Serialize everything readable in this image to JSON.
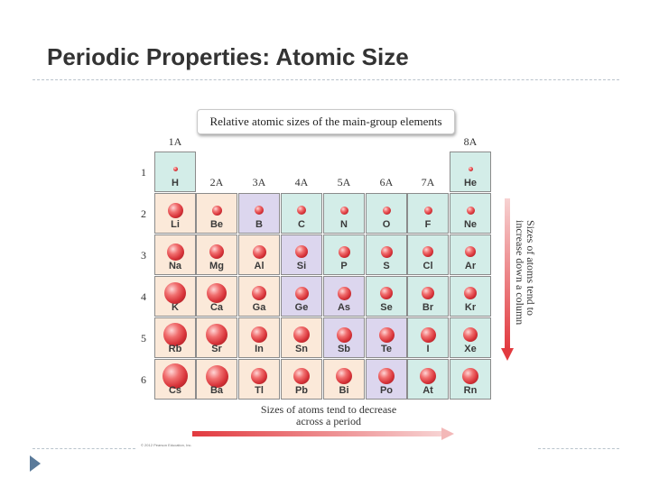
{
  "slide": {
    "title": "Periodic Properties: Atomic Size"
  },
  "figure": {
    "title": "Relative atomic sizes of the main-group elements",
    "groups": [
      "1A",
      "2A",
      "3A",
      "4A",
      "5A",
      "6A",
      "7A",
      "8A"
    ],
    "periods": [
      "1",
      "2",
      "3",
      "4",
      "5",
      "6"
    ],
    "elements": [
      {
        "symbol": "H",
        "period": 1,
        "group": 1,
        "relative_size": 0.37,
        "highlight": "teal"
      },
      {
        "symbol": "He",
        "period": 1,
        "group": 8,
        "relative_size": 0.32,
        "highlight": "teal"
      },
      {
        "symbol": "Li",
        "period": 2,
        "group": 1,
        "relative_size": 1.34,
        "highlight": "peach"
      },
      {
        "symbol": "Be",
        "period": 2,
        "group": 2,
        "relative_size": 0.9,
        "highlight": "peach"
      },
      {
        "symbol": "B",
        "period": 2,
        "group": 3,
        "relative_size": 0.82,
        "highlight": "lavender"
      },
      {
        "symbol": "C",
        "period": 2,
        "group": 4,
        "relative_size": 0.77,
        "highlight": "teal"
      },
      {
        "symbol": "N",
        "period": 2,
        "group": 5,
        "relative_size": 0.75,
        "highlight": "teal"
      },
      {
        "symbol": "O",
        "period": 2,
        "group": 6,
        "relative_size": 0.73,
        "highlight": "teal"
      },
      {
        "symbol": "F",
        "period": 2,
        "group": 7,
        "relative_size": 0.71,
        "highlight": "teal"
      },
      {
        "symbol": "Ne",
        "period": 2,
        "group": 8,
        "relative_size": 0.69,
        "highlight": "teal"
      },
      {
        "symbol": "Na",
        "period": 3,
        "group": 1,
        "relative_size": 1.54,
        "highlight": "peach"
      },
      {
        "symbol": "Mg",
        "period": 3,
        "group": 2,
        "relative_size": 1.3,
        "highlight": "peach"
      },
      {
        "symbol": "Al",
        "period": 3,
        "group": 3,
        "relative_size": 1.18,
        "highlight": "peach"
      },
      {
        "symbol": "Si",
        "period": 3,
        "group": 4,
        "relative_size": 1.11,
        "highlight": "lavender"
      },
      {
        "symbol": "P",
        "period": 3,
        "group": 5,
        "relative_size": 1.06,
        "highlight": "teal"
      },
      {
        "symbol": "S",
        "period": 3,
        "group": 6,
        "relative_size": 1.02,
        "highlight": "teal"
      },
      {
        "symbol": "Cl",
        "period": 3,
        "group": 7,
        "relative_size": 0.99,
        "highlight": "teal"
      },
      {
        "symbol": "Ar",
        "period": 3,
        "group": 8,
        "relative_size": 0.97,
        "highlight": "teal"
      },
      {
        "symbol": "K",
        "period": 4,
        "group": 1,
        "relative_size": 1.96,
        "highlight": "peach"
      },
      {
        "symbol": "Ca",
        "period": 4,
        "group": 2,
        "relative_size": 1.74,
        "highlight": "peach"
      },
      {
        "symbol": "Ga",
        "period": 4,
        "group": 3,
        "relative_size": 1.26,
        "highlight": "peach"
      },
      {
        "symbol": "Ge",
        "period": 4,
        "group": 4,
        "relative_size": 1.22,
        "highlight": "lavender"
      },
      {
        "symbol": "As",
        "period": 4,
        "group": 5,
        "relative_size": 1.19,
        "highlight": "lavender"
      },
      {
        "symbol": "Se",
        "period": 4,
        "group": 6,
        "relative_size": 1.16,
        "highlight": "teal"
      },
      {
        "symbol": "Br",
        "period": 4,
        "group": 7,
        "relative_size": 1.14,
        "highlight": "teal"
      },
      {
        "symbol": "Kr",
        "period": 4,
        "group": 8,
        "relative_size": 1.1,
        "highlight": "teal"
      },
      {
        "symbol": "Rb",
        "period": 5,
        "group": 1,
        "relative_size": 2.11,
        "highlight": "peach"
      },
      {
        "symbol": "Sr",
        "period": 5,
        "group": 2,
        "relative_size": 1.92,
        "highlight": "peach"
      },
      {
        "symbol": "In",
        "period": 5,
        "group": 3,
        "relative_size": 1.44,
        "highlight": "peach"
      },
      {
        "symbol": "Sn",
        "period": 5,
        "group": 4,
        "relative_size": 1.41,
        "highlight": "peach"
      },
      {
        "symbol": "Sb",
        "period": 5,
        "group": 5,
        "relative_size": 1.38,
        "highlight": "lavender"
      },
      {
        "symbol": "Te",
        "period": 5,
        "group": 6,
        "relative_size": 1.35,
        "highlight": "lavender"
      },
      {
        "symbol": "I",
        "period": 5,
        "group": 7,
        "relative_size": 1.33,
        "highlight": "teal"
      },
      {
        "symbol": "Xe",
        "period": 5,
        "group": 8,
        "relative_size": 1.3,
        "highlight": "teal"
      },
      {
        "symbol": "Cs",
        "period": 6,
        "group": 1,
        "relative_size": 2.25,
        "highlight": "peach"
      },
      {
        "symbol": "Ba",
        "period": 6,
        "group": 2,
        "relative_size": 1.98,
        "highlight": "peach"
      },
      {
        "symbol": "Tl",
        "period": 6,
        "group": 3,
        "relative_size": 1.48,
        "highlight": "peach"
      },
      {
        "symbol": "Pb",
        "period": 6,
        "group": 4,
        "relative_size": 1.47,
        "highlight": "peach"
      },
      {
        "symbol": "Bi",
        "period": 6,
        "group": 5,
        "relative_size": 1.46,
        "highlight": "peach"
      },
      {
        "symbol": "Po",
        "period": 6,
        "group": 6,
        "relative_size": 1.46,
        "highlight": "lavender"
      },
      {
        "symbol": "At",
        "period": 6,
        "group": 7,
        "relative_size": 1.45,
        "highlight": "teal"
      },
      {
        "symbol": "Rn",
        "period": 6,
        "group": 8,
        "relative_size": 1.45,
        "highlight": "teal"
      }
    ],
    "axis_down_label": "Sizes of atoms tend to increase down a column",
    "axis_across_label": "Sizes of atoms tend to decrease across a period",
    "copyright": "© 2012 Pearson Education, Inc."
  },
  "colors": {
    "teal": "#d3ede8",
    "peach": "#fbe9d9",
    "lavender": "#dcd6ee",
    "atom_red": "#d8343a",
    "arrow_red": "#e23a3f",
    "title_text": "#333333",
    "nav_arrow": "#5a7a9a"
  }
}
